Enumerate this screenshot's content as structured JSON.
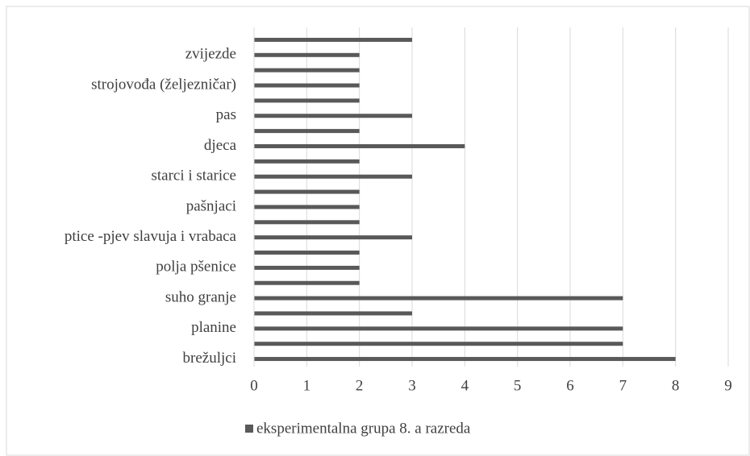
{
  "chart_data": {
    "type": "bar",
    "orientation": "horizontal",
    "categories": [
      "brežuljci",
      null,
      "planine",
      null,
      "suho granje",
      null,
      "polja pšenice",
      null,
      "ptice -pjev slavuja i vrabaca",
      null,
      "pašnjaci",
      null,
      "starci i starice",
      null,
      "djeca",
      null,
      "pas",
      null,
      "strojovođa (željezničar)",
      null,
      "zvijezde",
      null
    ],
    "series": [
      {
        "name": "eksperimentalna grupa 8. a razreda",
        "color": "#595959",
        "values": [
          8,
          7,
          7,
          3,
          7,
          2,
          2,
          2,
          3,
          2,
          2,
          2,
          3,
          2,
          4,
          2,
          3,
          2,
          2,
          2,
          2,
          3
        ]
      }
    ],
    "xlim": [
      0,
      9
    ],
    "xticks": [
      0,
      1,
      2,
      3,
      4,
      5,
      6,
      7,
      8,
      9
    ],
    "grid": true,
    "legend": "bottom"
  }
}
